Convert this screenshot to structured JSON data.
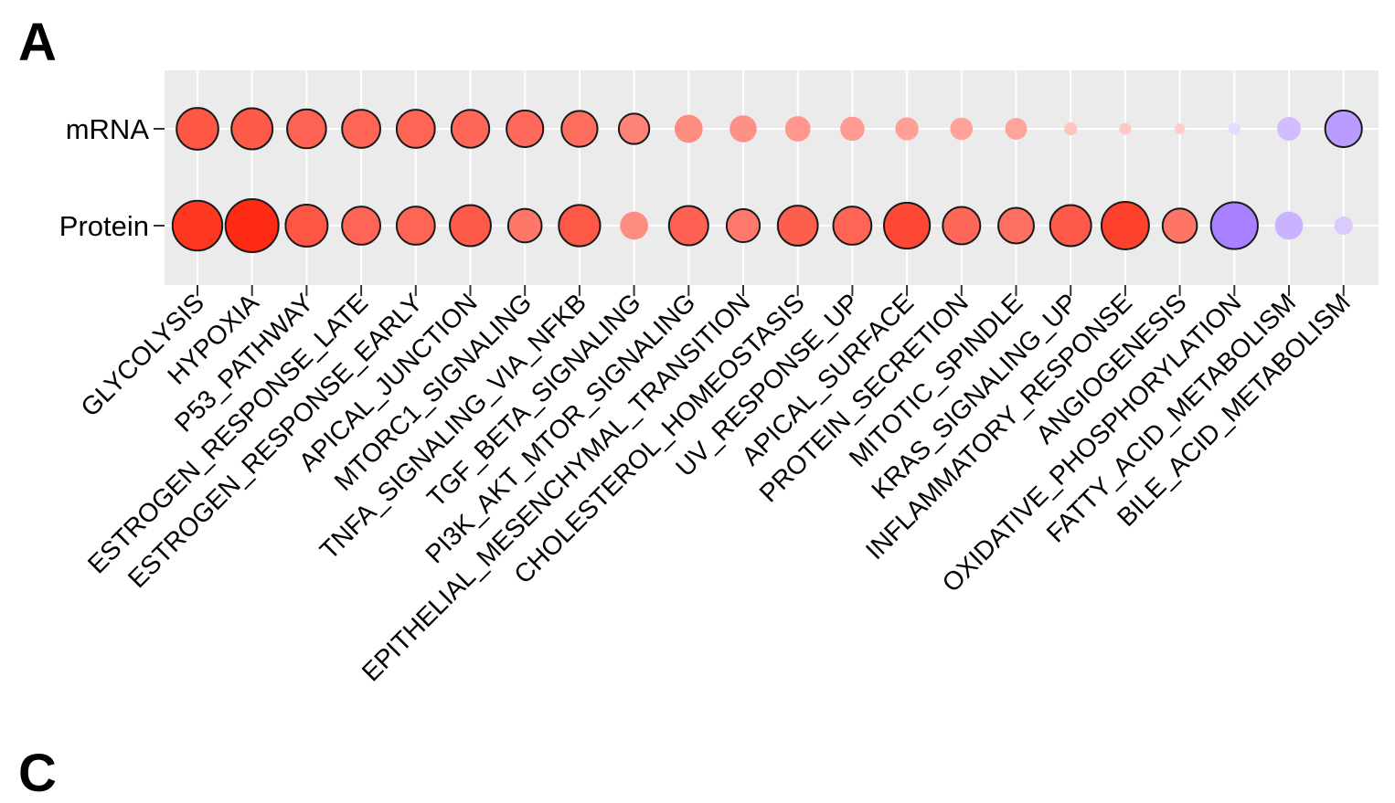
{
  "panel_labels": {
    "top": "A",
    "bottom": "C"
  },
  "chart_data": {
    "type": "bubble",
    "title": "",
    "xlabel": "",
    "ylabel": "",
    "rows": [
      "mRNA",
      "Protein"
    ],
    "categories": [
      "GLYCOLYSIS",
      "HYPOXIA",
      "P53_PATHWAY",
      "ESTROGEN_RESPONSE_LATE",
      "ESTROGEN_RESPONSE_EARLY",
      "APICAL_JUNCTION",
      "MTORC1_SIGNALING",
      "TNFA_SIGNALING_VIA_NFKB",
      "TGF_BETA_SIGNALING",
      "PI3K_AKT_MTOR_SIGNALING",
      "EPITHELIAL_MESENCHYMAL_TRANSITION",
      "CHOLESTEROL_HOMEOSTASIS",
      "UV_RESPONSE_UP",
      "APICAL_SURFACE",
      "PROTEIN_SECRETION",
      "MITOTIC_SPINDLE",
      "KRAS_SIGNALING_UP",
      "INFLAMMATORY_RESPONSE",
      "ANGIOGENESIS",
      "OXIDATIVE_PHOSPHORYLATION",
      "FATTY_ACID_METABOLISM",
      "BILE_ACID_METABOLISM"
    ],
    "series": [
      {
        "row": "mRNA",
        "values": [
          0.62,
          0.6,
          0.54,
          0.52,
          0.52,
          0.51,
          0.48,
          0.46,
          0.33,
          0.28,
          0.26,
          0.23,
          0.21,
          0.19,
          0.18,
          0.17,
          0.06,
          0.05,
          0.04,
          -0.05,
          -0.2,
          -0.48
        ],
        "significant": [
          true,
          true,
          true,
          true,
          true,
          true,
          true,
          true,
          true,
          false,
          false,
          false,
          false,
          false,
          false,
          false,
          false,
          false,
          false,
          false,
          false,
          true
        ]
      },
      {
        "row": "Protein",
        "values": [
          0.88,
          1.0,
          0.63,
          0.52,
          0.52,
          0.6,
          0.4,
          0.61,
          0.28,
          0.55,
          0.39,
          0.57,
          0.52,
          0.75,
          0.5,
          0.45,
          0.6,
          0.8,
          0.42,
          -0.78,
          -0.28,
          -0.12
        ],
        "significant": [
          true,
          true,
          true,
          true,
          true,
          true,
          true,
          true,
          false,
          true,
          true,
          true,
          true,
          true,
          true,
          true,
          true,
          true,
          true,
          true,
          false,
          false
        ]
      }
    ],
    "legend": "none",
    "grid": true,
    "colors": {
      "positive": "#fe2a14",
      "negative": "#9b70ff",
      "panel_background": "#ebebeb",
      "gridline": "#ffffff"
    }
  }
}
